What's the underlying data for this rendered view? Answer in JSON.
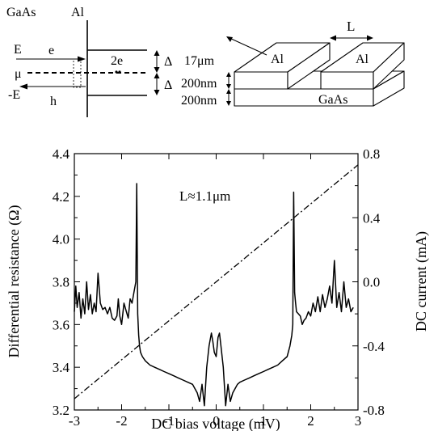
{
  "band_diagram": {
    "left_material": "GaAs",
    "right_material": "Al",
    "electron_energy": "E",
    "electron": "e",
    "chemical_potential": "μ",
    "hole_energy": "-E",
    "hole": "h",
    "cooper_pair": "2e",
    "gap_upper": "Δ",
    "gap_lower": "Δ"
  },
  "device_sketch": {
    "gap_length": "L",
    "width": "17μm",
    "al_thickness": "200nm",
    "gaas_thickness": "200nm",
    "left_pad": "Al",
    "right_pad": "Al",
    "substrate": "GaAs"
  },
  "chart_data": {
    "type": "line",
    "title": "",
    "annotation": "L≈1.1μm",
    "xlabel": "DC bias voltage (mV)",
    "ylabel": "Differential resistance (Ω)",
    "y2label": "DC current (mA)",
    "xlim": [
      -3,
      3
    ],
    "ylim": [
      3.2,
      4.4
    ],
    "y2lim": [
      -0.8,
      0.8
    ],
    "xticks": [
      -3,
      -2,
      -1,
      0,
      1,
      2,
      3
    ],
    "yticks": [
      3.2,
      3.4,
      3.6,
      3.8,
      4.0,
      4.2,
      4.4
    ],
    "y2ticks": [
      -0.8,
      -0.4,
      0.0,
      0.4,
      0.8
    ],
    "xtick_labels": [
      "-3",
      "-2",
      "-1",
      "0",
      "1",
      "2",
      "3"
    ],
    "ytick_labels": [
      "3.2",
      "3.4",
      "3.6",
      "3.8",
      "4.0",
      "4.2",
      "4.4"
    ],
    "y2tick_labels": [
      "-0.8",
      "-0.4",
      "0.0",
      "0.4",
      "0.8"
    ],
    "grid": false,
    "series": [
      {
        "axis": "left",
        "style": "solid",
        "x": [
          -3.0,
          -2.97,
          -2.94,
          -2.9,
          -2.86,
          -2.82,
          -2.78,
          -2.74,
          -2.7,
          -2.66,
          -2.62,
          -2.58,
          -2.54,
          -2.5,
          -2.45,
          -2.4,
          -2.35,
          -2.3,
          -2.25,
          -2.2,
          -2.15,
          -2.1,
          -2.07,
          -2.04,
          -2.0,
          -1.95,
          -1.9,
          -1.86,
          -1.82,
          -1.78,
          -1.74,
          -1.7,
          -1.68,
          -1.66,
          -1.64,
          -1.62,
          -1.6,
          -1.56,
          -1.5,
          -1.4,
          -1.3,
          -1.2,
          -1.1,
          -1.0,
          -0.9,
          -0.8,
          -0.7,
          -0.6,
          -0.5,
          -0.45,
          -0.4,
          -0.35,
          -0.3,
          -0.25,
          -0.2,
          -0.15,
          -0.1,
          -0.07,
          -0.04,
          0.0,
          0.04,
          0.07,
          0.1,
          0.15,
          0.2,
          0.25,
          0.3,
          0.35,
          0.4,
          0.45,
          0.5,
          0.6,
          0.7,
          0.8,
          0.9,
          1.0,
          1.1,
          1.2,
          1.3,
          1.4,
          1.5,
          1.56,
          1.6,
          1.62,
          1.64,
          1.66,
          1.68,
          1.7,
          1.74,
          1.78,
          1.82,
          1.86,
          1.9,
          1.95,
          2.0,
          2.05,
          2.1,
          2.15,
          2.2,
          2.25,
          2.3,
          2.35,
          2.4,
          2.45,
          2.5,
          2.55,
          2.6,
          2.65,
          2.7,
          2.75,
          2.8,
          2.85,
          2.9
        ],
        "y": [
          3.66,
          3.78,
          3.68,
          3.75,
          3.63,
          3.72,
          3.65,
          3.8,
          3.67,
          3.74,
          3.65,
          3.7,
          3.66,
          3.84,
          3.7,
          3.67,
          3.68,
          3.65,
          3.68,
          3.63,
          3.62,
          3.64,
          3.72,
          3.64,
          3.6,
          3.7,
          3.66,
          3.63,
          3.72,
          3.7,
          3.75,
          3.8,
          4.26,
          3.65,
          3.55,
          3.5,
          3.47,
          3.45,
          3.43,
          3.41,
          3.4,
          3.39,
          3.38,
          3.37,
          3.36,
          3.35,
          3.34,
          3.33,
          3.32,
          3.3,
          3.28,
          3.24,
          3.32,
          3.22,
          3.4,
          3.5,
          3.56,
          3.52,
          3.47,
          3.45,
          3.54,
          3.56,
          3.5,
          3.4,
          3.22,
          3.32,
          3.24,
          3.28,
          3.3,
          3.32,
          3.33,
          3.34,
          3.35,
          3.36,
          3.37,
          3.38,
          3.39,
          3.4,
          3.41,
          3.43,
          3.45,
          3.5,
          3.55,
          3.6,
          4.22,
          3.75,
          3.7,
          3.66,
          3.65,
          3.64,
          3.6,
          3.62,
          3.63,
          3.66,
          3.64,
          3.7,
          3.66,
          3.73,
          3.66,
          3.74,
          3.68,
          3.72,
          3.78,
          3.7,
          3.9,
          3.68,
          3.75,
          3.66,
          3.8,
          3.68,
          3.72,
          3.66,
          3.68
        ]
      },
      {
        "axis": "right",
        "style": "dash-dot",
        "x": [
          -3,
          3
        ],
        "y": [
          -0.73,
          0.73
        ]
      }
    ]
  }
}
